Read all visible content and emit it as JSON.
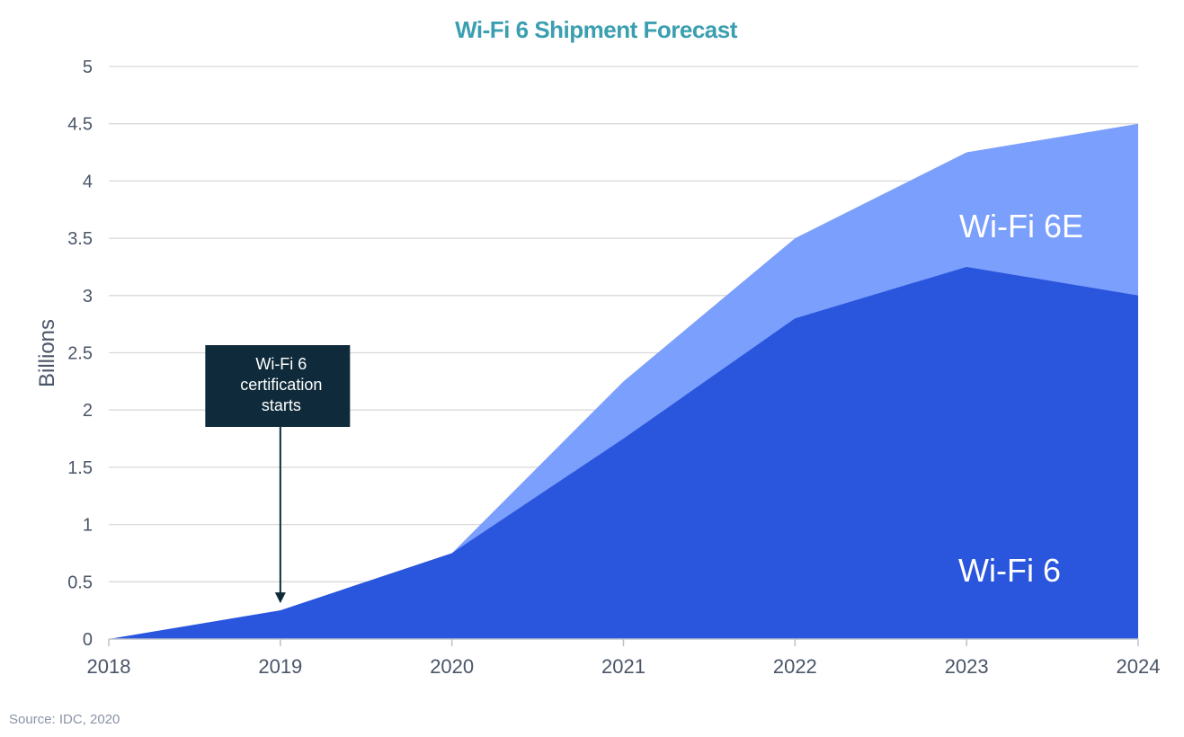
{
  "chart_data": {
    "type": "area",
    "stacked": true,
    "title": "Wi-Fi 6 Shipment Forecast",
    "ylabel": "Billions",
    "xlabel": "",
    "x": [
      "2018",
      "2019",
      "2020",
      "2021",
      "2022",
      "2023",
      "2024"
    ],
    "ylim": [
      0,
      5
    ],
    "yticks": [
      "0",
      "0.5",
      "1",
      "1.5",
      "2",
      "2.5",
      "3",
      "3.5",
      "4",
      "4.5",
      "5"
    ],
    "grid": true,
    "series": [
      {
        "name": "Wi-Fi 6",
        "values": [
          0,
          0.25,
          0.75,
          1.75,
          2.8,
          3.25,
          3.0
        ],
        "color": "#2a55dd"
      },
      {
        "name": "Wi-Fi 6E",
        "values": [
          0,
          0,
          0,
          0.5,
          0.7,
          1.0,
          1.5
        ],
        "color": "#7b9ffc"
      }
    ],
    "annotation": {
      "text_lines": [
        "Wi-Fi 6",
        "certification",
        "starts"
      ],
      "x": "2019",
      "y": 0.25
    },
    "source": "Source: IDC, 2020"
  },
  "colors": {
    "title": "#3a9fb0",
    "annotation_bg": "#0f2a3a",
    "grid": "#d9d9d9",
    "axis": "#b8c2cc"
  }
}
